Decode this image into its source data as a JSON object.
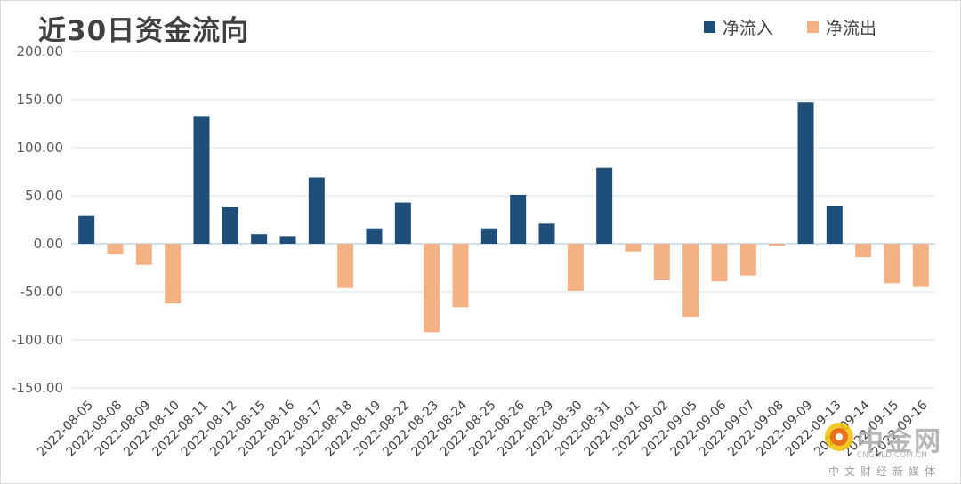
{
  "chart_data": {
    "type": "bar",
    "title": "近30日资金流向",
    "xlabel": "",
    "ylabel": "",
    "ylim": [
      -150,
      200
    ],
    "yticks": [
      "200.00",
      "150.00",
      "100.00",
      "50.00",
      "0.00",
      "-50.00",
      "-100.00",
      "-150.00"
    ],
    "grid": true,
    "legend_position": "top-right",
    "categories": [
      "2022-08-05",
      "2022-08-08",
      "2022-08-09",
      "2022-08-10",
      "2022-08-11",
      "2022-08-12",
      "2022-08-15",
      "2022-08-16",
      "2022-08-17",
      "2022-08-18",
      "2022-08-19",
      "2022-08-22",
      "2022-08-23",
      "2022-08-24",
      "2022-08-25",
      "2022-08-26",
      "2022-08-29",
      "2022-08-30",
      "2022-08-31",
      "2022-09-01",
      "2022-09-02",
      "2022-09-05",
      "2022-09-06",
      "2022-09-07",
      "2022-09-08",
      "2022-09-09",
      "2022-09-13",
      "2022-09-14",
      "2022-09-15",
      "2022-09-16"
    ],
    "series": [
      {
        "name": "净流入",
        "color": "#1f4e79",
        "values": [
          29,
          null,
          null,
          null,
          133,
          38,
          10,
          8,
          69,
          null,
          16,
          43,
          null,
          null,
          16,
          51,
          21,
          null,
          79,
          null,
          null,
          null,
          null,
          null,
          null,
          147,
          39,
          null,
          null,
          null
        ]
      },
      {
        "name": "净流出",
        "color": "#f4b183",
        "values": [
          null,
          -11,
          -22,
          -62,
          null,
          null,
          null,
          null,
          null,
          -46,
          null,
          null,
          -92,
          -66,
          null,
          null,
          null,
          -49,
          null,
          -8,
          -38,
          -76,
          -39,
          -33,
          -2,
          null,
          null,
          -14,
          -41,
          -45
        ]
      }
    ]
  },
  "watermark": {
    "brand": "中金网",
    "site": "CNGOLD.COM.CN",
    "tagline": "中文财经新媒体"
  }
}
